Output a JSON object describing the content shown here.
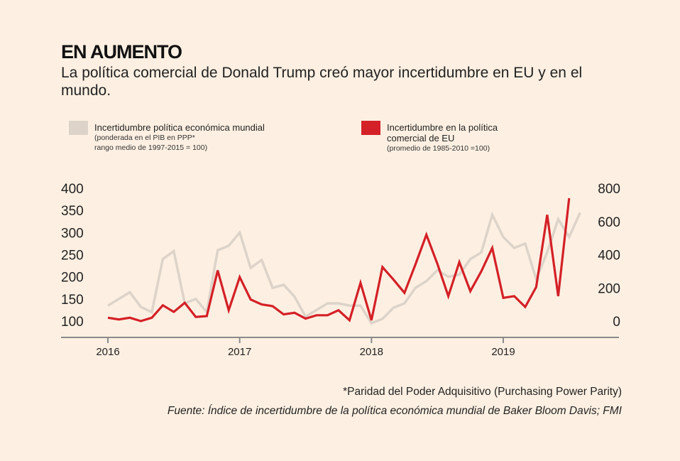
{
  "header": {
    "title": "EN AUMENTO",
    "subtitle": "La política comercial de Donald Trump creó mayor incertidumbre en EU y en el mundo."
  },
  "legend": {
    "grey": {
      "label": "Incertidumbre política económica mundial",
      "sub1": "(ponderada en el PIB en PPP*",
      "sub2": "rango medio de 1997-2015 = 100)",
      "color": "#ddd3c9"
    },
    "red": {
      "label1": "Incertidumbre en la política",
      "label2": "comercial de EU",
      "sub1": "(promedio de 1985-2010 =100)",
      "color": "#d42027"
    }
  },
  "footer": {
    "footnote": "*Paridad del Poder Adquisitivo (Purchasing Power Parity)",
    "source": "Fuente: Índice de incertidumbre de la política económica mundial de Baker Bloom Davis; FMI"
  },
  "chart_data": {
    "type": "line",
    "title": "EN AUMENTO",
    "xlabel": "",
    "ylabel_left": "",
    "ylabel_right": "",
    "x_ticks": [
      "2016",
      "2017",
      "2018",
      "2019"
    ],
    "y_left_ticks": [
      "100",
      "150",
      "200",
      "250",
      "300",
      "350",
      "400"
    ],
    "y_right_ticks": [
      "0",
      "200",
      "400",
      "600",
      "800"
    ],
    "y_left_lim": [
      100,
      400
    ],
    "y_right_lim": [
      0,
      800
    ],
    "x_start": "2016-01",
    "grid": false,
    "legend_position": "top",
    "series": [
      {
        "name": "Incertidumbre política económica mundial",
        "axis": "left",
        "color": "#ddd3c9",
        "values": [
          135,
          150,
          165,
          132,
          120,
          240,
          258,
          140,
          150,
          120,
          260,
          270,
          300,
          220,
          238,
          175,
          182,
          155,
          110,
          125,
          140,
          140,
          135,
          135,
          95,
          105,
          130,
          140,
          175,
          190,
          215,
          200,
          205,
          240,
          255,
          340,
          290,
          265,
          275,
          195,
          255,
          330,
          290,
          345
        ]
      },
      {
        "name": "Incertidumbre en la política comercial de EU",
        "axis": "right",
        "color": "#d42027",
        "values": [
          20,
          10,
          20,
          0,
          20,
          95,
          55,
          110,
          25,
          30,
          305,
          65,
          265,
          130,
          100,
          90,
          40,
          50,
          15,
          35,
          35,
          65,
          5,
          230,
          5,
          325,
          250,
          170,
          340,
          520,
          345,
          150,
          355,
          180,
          300,
          440,
          140,
          150,
          85,
          205,
          640,
          150,
          740
        ]
      }
    ]
  }
}
